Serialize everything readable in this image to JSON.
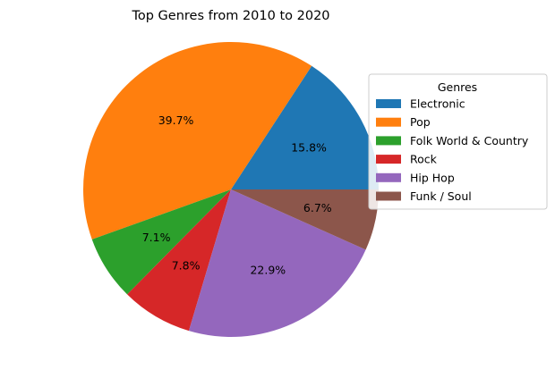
{
  "chart_data": {
    "type": "pie",
    "title": "Top Genres from 2010 to 2020",
    "slices": [
      {
        "label": "Electronic",
        "value": 15.8,
        "pct_label": "15.8%",
        "color": "#1f77b4"
      },
      {
        "label": "Pop",
        "value": 39.7,
        "pct_label": "39.7%",
        "color": "#ff7f0e"
      },
      {
        "label": "Folk World & Country",
        "value": 7.1,
        "pct_label": "7.1%",
        "color": "#2ca02c"
      },
      {
        "label": "Rock",
        "value": 7.8,
        "pct_label": "7.8%",
        "color": "#d62728"
      },
      {
        "label": "Hip Hop",
        "value": 22.9,
        "pct_label": "22.9%",
        "color": "#9467bd"
      },
      {
        "label": "Funk / Soul",
        "value": 6.7,
        "pct_label": "6.7%",
        "color": "#8c564b"
      }
    ],
    "legend": {
      "title": "Genres",
      "placement": "right"
    }
  }
}
